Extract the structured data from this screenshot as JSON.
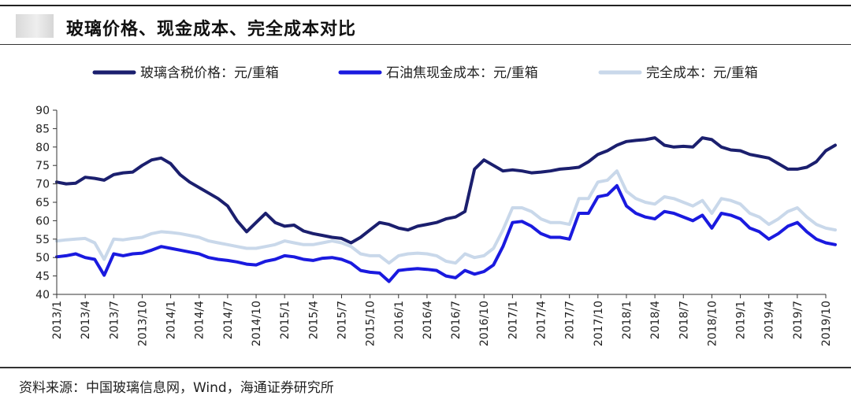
{
  "header": {
    "title": "玻璃价格、现金成本、完全成本对比"
  },
  "footer": {
    "source": "资料来源：中国玻璃信息网，Wind，海通证券研究所"
  },
  "colors": {
    "price": "#1b1f6e",
    "cash_cost": "#1a1adf",
    "full_cost": "#c9d8ea",
    "axis": "#333333"
  },
  "chart_data": {
    "type": "line",
    "x_unit": "month",
    "x_start": "2013/1",
    "x_end": "2019/10",
    "ylim": [
      40,
      90
    ],
    "yticks": [
      40,
      45,
      50,
      55,
      60,
      65,
      70,
      75,
      80,
      85,
      90
    ],
    "xticks": [
      "2013/1",
      "2013/4",
      "2013/7",
      "2013/10",
      "2014/1",
      "2014/4",
      "2014/7",
      "2014/10",
      "2015/1",
      "2015/4",
      "2015/7",
      "2015/10",
      "2016/1",
      "2016/4",
      "2016/7",
      "2016/10",
      "2017/1",
      "2017/4",
      "2017/7",
      "2017/10",
      "2018/1",
      "2018/4",
      "2018/7",
      "2018/10",
      "2019/1",
      "2019/4",
      "2019/7",
      "2019/10"
    ],
    "legend_position": "top",
    "grid": false,
    "series": [
      {
        "name": "玻璃含税价格：元/重箱",
        "color_key": "price",
        "points": [
          [
            "2013/1",
            70.5
          ],
          [
            "2013/2",
            70
          ],
          [
            "2013/3",
            70.2
          ],
          [
            "2013/4",
            71.8
          ],
          [
            "2013/5",
            71.5
          ],
          [
            "2013/6",
            71
          ],
          [
            "2013/7",
            72.5
          ],
          [
            "2013/8",
            73
          ],
          [
            "2013/9",
            73.2
          ],
          [
            "2013/10",
            75
          ],
          [
            "2013/11",
            76.5
          ],
          [
            "2013/12",
            77
          ],
          [
            "2014/1",
            75.5
          ],
          [
            "2014/2",
            72.5
          ],
          [
            "2014/3",
            70.5
          ],
          [
            "2014/4",
            69
          ],
          [
            "2014/5",
            67.5
          ],
          [
            "2014/6",
            66
          ],
          [
            "2014/7",
            64
          ],
          [
            "2014/8",
            60
          ],
          [
            "2014/9",
            57
          ],
          [
            "2014/10",
            59.5
          ],
          [
            "2014/11",
            62
          ],
          [
            "2014/12",
            59.5
          ],
          [
            "2015/1",
            58.5
          ],
          [
            "2015/2",
            58.8
          ],
          [
            "2015/3",
            57.2
          ],
          [
            "2015/4",
            56.5
          ],
          [
            "2015/5",
            56
          ],
          [
            "2015/6",
            55.5
          ],
          [
            "2015/7",
            55.2
          ],
          [
            "2015/8",
            54
          ],
          [
            "2015/9",
            55.5
          ],
          [
            "2015/10",
            57.5
          ],
          [
            "2015/11",
            59.5
          ],
          [
            "2015/12",
            59
          ],
          [
            "2016/1",
            58
          ],
          [
            "2016/2",
            57.5
          ],
          [
            "2016/3",
            58.5
          ],
          [
            "2016/4",
            59
          ],
          [
            "2016/5",
            59.5
          ],
          [
            "2016/6",
            60.5
          ],
          [
            "2016/7",
            61
          ],
          [
            "2016/8",
            62.5
          ],
          [
            "2016/9",
            74
          ],
          [
            "2016/10",
            76.5
          ],
          [
            "2016/11",
            75
          ],
          [
            "2016/12",
            73.5
          ],
          [
            "2017/1",
            73.8
          ],
          [
            "2017/2",
            73.5
          ],
          [
            "2017/3",
            73
          ],
          [
            "2017/4",
            73.2
          ],
          [
            "2017/5",
            73.5
          ],
          [
            "2017/6",
            74
          ],
          [
            "2017/7",
            74.2
          ],
          [
            "2017/8",
            74.5
          ],
          [
            "2017/9",
            76
          ],
          [
            "2017/10",
            78
          ],
          [
            "2017/11",
            79
          ],
          [
            "2017/12",
            80.5
          ],
          [
            "2018/1",
            81.5
          ],
          [
            "2018/2",
            81.8
          ],
          [
            "2018/3",
            82
          ],
          [
            "2018/4",
            82.5
          ],
          [
            "2018/5",
            80.5
          ],
          [
            "2018/6",
            80
          ],
          [
            "2018/7",
            80.2
          ],
          [
            "2018/8",
            80
          ],
          [
            "2018/9",
            82.5
          ],
          [
            "2018/10",
            82
          ],
          [
            "2018/11",
            80
          ],
          [
            "2018/12",
            79.2
          ],
          [
            "2019/1",
            79
          ],
          [
            "2019/2",
            78
          ],
          [
            "2019/3",
            77.5
          ],
          [
            "2019/4",
            77
          ],
          [
            "2019/5",
            75.5
          ],
          [
            "2019/6",
            74
          ],
          [
            "2019/7",
            74
          ],
          [
            "2019/8",
            74.5
          ],
          [
            "2019/9",
            76
          ],
          [
            "2019/10",
            79
          ],
          [
            "2019/11",
            80.5
          ]
        ]
      },
      {
        "name": "石油焦现金成本：元/重箱",
        "color_key": "cash_cost",
        "points": [
          [
            "2013/1",
            50.2
          ],
          [
            "2013/2",
            50.5
          ],
          [
            "2013/3",
            51
          ],
          [
            "2013/4",
            50
          ],
          [
            "2013/5",
            49.5
          ],
          [
            "2013/6",
            45.2
          ],
          [
            "2013/7",
            51
          ],
          [
            "2013/8",
            50.5
          ],
          [
            "2013/9",
            51
          ],
          [
            "2013/10",
            51.2
          ],
          [
            "2013/11",
            52
          ],
          [
            "2013/12",
            53
          ],
          [
            "2014/1",
            52.5
          ],
          [
            "2014/2",
            52
          ],
          [
            "2014/3",
            51.5
          ],
          [
            "2014/4",
            51
          ],
          [
            "2014/5",
            50
          ],
          [
            "2014/6",
            49.5
          ],
          [
            "2014/7",
            49.2
          ],
          [
            "2014/8",
            48.8
          ],
          [
            "2014/9",
            48.2
          ],
          [
            "2014/10",
            48
          ],
          [
            "2014/11",
            49
          ],
          [
            "2014/12",
            49.5
          ],
          [
            "2015/1",
            50.5
          ],
          [
            "2015/2",
            50.2
          ],
          [
            "2015/3",
            49.5
          ],
          [
            "2015/4",
            49.2
          ],
          [
            "2015/5",
            49.8
          ],
          [
            "2015/6",
            50
          ],
          [
            "2015/7",
            49.5
          ],
          [
            "2015/8",
            48.5
          ],
          [
            "2015/9",
            46.5
          ],
          [
            "2015/10",
            46
          ],
          [
            "2015/11",
            45.8
          ],
          [
            "2015/12",
            43.5
          ],
          [
            "2016/1",
            46.5
          ],
          [
            "2016/2",
            46.8
          ],
          [
            "2016/3",
            47
          ],
          [
            "2016/4",
            46.8
          ],
          [
            "2016/5",
            46.5
          ],
          [
            "2016/6",
            45
          ],
          [
            "2016/7",
            44.5
          ],
          [
            "2016/8",
            46.5
          ],
          [
            "2016/9",
            45.5
          ],
          [
            "2016/10",
            46.2
          ],
          [
            "2016/11",
            48
          ],
          [
            "2016/12",
            53
          ],
          [
            "2017/1",
            59.5
          ],
          [
            "2017/2",
            59.8
          ],
          [
            "2017/3",
            58.5
          ],
          [
            "2017/4",
            56.5
          ],
          [
            "2017/5",
            55.5
          ],
          [
            "2017/6",
            55.5
          ],
          [
            "2017/7",
            55
          ],
          [
            "2017/8",
            62
          ],
          [
            "2017/9",
            62
          ],
          [
            "2017/10",
            66.5
          ],
          [
            "2017/11",
            67
          ],
          [
            "2017/12",
            69.5
          ],
          [
            "2018/1",
            64
          ],
          [
            "2018/2",
            62
          ],
          [
            "2018/3",
            61
          ],
          [
            "2018/4",
            60.5
          ],
          [
            "2018/5",
            62.5
          ],
          [
            "2018/6",
            62
          ],
          [
            "2018/7",
            61
          ],
          [
            "2018/8",
            60
          ],
          [
            "2018/9",
            61.5
          ],
          [
            "2018/10",
            58
          ],
          [
            "2018/11",
            62
          ],
          [
            "2018/12",
            61.5
          ],
          [
            "2019/1",
            60.5
          ],
          [
            "2019/2",
            58
          ],
          [
            "2019/3",
            57
          ],
          [
            "2019/4",
            55
          ],
          [
            "2019/5",
            56.5
          ],
          [
            "2019/6",
            58.5
          ],
          [
            "2019/7",
            59.5
          ],
          [
            "2019/8",
            57
          ],
          [
            "2019/9",
            55
          ],
          [
            "2019/10",
            54
          ],
          [
            "2019/11",
            53.5
          ]
        ]
      },
      {
        "name": "完全成本：元/重箱",
        "color_key": "full_cost",
        "points": [
          [
            "2013/1",
            54.5
          ],
          [
            "2013/2",
            54.8
          ],
          [
            "2013/3",
            55
          ],
          [
            "2013/4",
            55.2
          ],
          [
            "2013/5",
            54
          ],
          [
            "2013/6",
            49.5
          ],
          [
            "2013/7",
            55
          ],
          [
            "2013/8",
            54.8
          ],
          [
            "2013/9",
            55.2
          ],
          [
            "2013/10",
            55.5
          ],
          [
            "2013/11",
            56.5
          ],
          [
            "2013/12",
            57
          ],
          [
            "2014/1",
            56.8
          ],
          [
            "2014/2",
            56.5
          ],
          [
            "2014/3",
            56
          ],
          [
            "2014/4",
            55.5
          ],
          [
            "2014/5",
            54.5
          ],
          [
            "2014/6",
            54
          ],
          [
            "2014/7",
            53.5
          ],
          [
            "2014/8",
            53
          ],
          [
            "2014/9",
            52.5
          ],
          [
            "2014/10",
            52.5
          ],
          [
            "2014/11",
            53
          ],
          [
            "2014/12",
            53.5
          ],
          [
            "2015/1",
            54.5
          ],
          [
            "2015/2",
            54
          ],
          [
            "2015/3",
            53.5
          ],
          [
            "2015/4",
            53.5
          ],
          [
            "2015/5",
            54
          ],
          [
            "2015/6",
            54.5
          ],
          [
            "2015/7",
            54
          ],
          [
            "2015/8",
            53
          ],
          [
            "2015/9",
            51
          ],
          [
            "2015/10",
            50.5
          ],
          [
            "2015/11",
            50.5
          ],
          [
            "2015/12",
            48.5
          ],
          [
            "2016/1",
            50.5
          ],
          [
            "2016/2",
            51
          ],
          [
            "2016/3",
            51.2
          ],
          [
            "2016/4",
            51
          ],
          [
            "2016/5",
            50.5
          ],
          [
            "2016/6",
            49
          ],
          [
            "2016/7",
            48.5
          ],
          [
            "2016/8",
            51
          ],
          [
            "2016/9",
            50
          ],
          [
            "2016/10",
            50.5
          ],
          [
            "2016/11",
            52.5
          ],
          [
            "2016/12",
            57.5
          ],
          [
            "2017/1",
            63.5
          ],
          [
            "2017/2",
            63.5
          ],
          [
            "2017/3",
            62.5
          ],
          [
            "2017/4",
            60.5
          ],
          [
            "2017/5",
            59.5
          ],
          [
            "2017/6",
            59.5
          ],
          [
            "2017/7",
            59
          ],
          [
            "2017/8",
            66
          ],
          [
            "2017/9",
            66
          ],
          [
            "2017/10",
            70.5
          ],
          [
            "2017/11",
            71
          ],
          [
            "2017/12",
            73.5
          ],
          [
            "2018/1",
            68
          ],
          [
            "2018/2",
            66
          ],
          [
            "2018/3",
            65
          ],
          [
            "2018/4",
            64.5
          ],
          [
            "2018/5",
            66.5
          ],
          [
            "2018/6",
            66
          ],
          [
            "2018/7",
            65
          ],
          [
            "2018/8",
            64
          ],
          [
            "2018/9",
            65.5
          ],
          [
            "2018/10",
            62
          ],
          [
            "2018/11",
            66
          ],
          [
            "2018/12",
            65.5
          ],
          [
            "2019/1",
            64.5
          ],
          [
            "2019/2",
            62
          ],
          [
            "2019/3",
            61
          ],
          [
            "2019/4",
            59
          ],
          [
            "2019/5",
            60.5
          ],
          [
            "2019/6",
            62.5
          ],
          [
            "2019/7",
            63.5
          ],
          [
            "2019/8",
            61
          ],
          [
            "2019/9",
            59
          ],
          [
            "2019/10",
            58
          ],
          [
            "2019/11",
            57.5
          ]
        ]
      }
    ]
  }
}
